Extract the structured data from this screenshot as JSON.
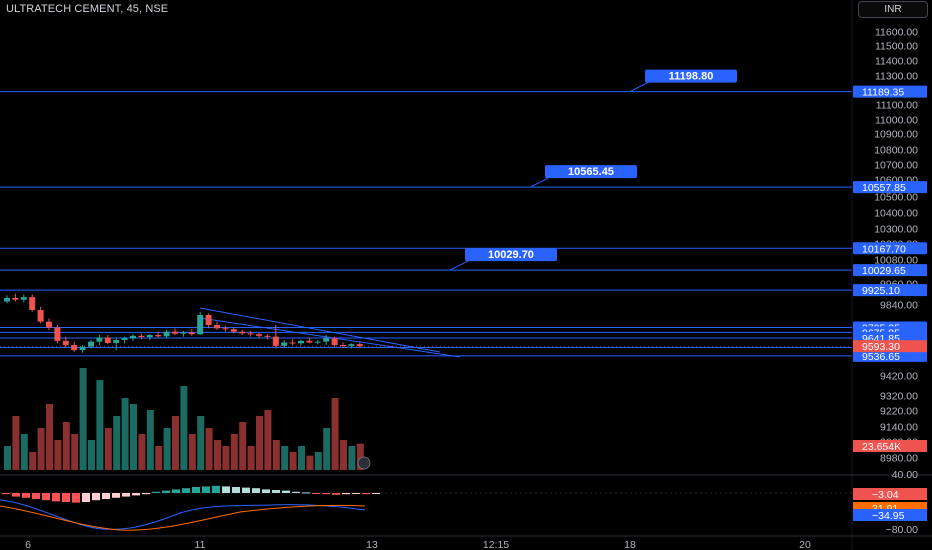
{
  "header": {
    "symbol": "ULTRATECH CEMENT, 45, NSE",
    "currency": "INR"
  },
  "colors": {
    "bg": "#000000",
    "up": "#26a69a",
    "down": "#ef5350",
    "line": "#2962ff",
    "axis_text": "#b2b5be",
    "grid": "#1e222d"
  },
  "chart_data": {
    "type": "candlestick",
    "price_axis": {
      "ticks": [
        11600,
        11500,
        11400,
        11300,
        11200,
        11100,
        11000,
        10900,
        10800,
        10700,
        10600,
        10500,
        10400,
        10300,
        10200,
        10080,
        9960,
        9840,
        9720,
        9600,
        9420,
        9320,
        9220,
        9140,
        9060,
        8980
      ],
      "tick_labels": [
        "11600.00",
        "11500.00",
        "11400.00",
        "11300.00",
        "11200.00",
        "11100.00",
        "11000.00",
        "10900.00",
        "10800.00",
        "10700.00",
        "10600.00",
        "10500.00",
        "10400.00",
        "10300.00",
        "10200.00",
        "10080.00",
        "9960.00",
        "9840.00",
        "9720.00",
        "9600.00",
        "9420.00",
        "9320.00",
        "9220.00",
        "9140.00",
        "9060.00",
        "8980.00"
      ]
    },
    "x_axis": {
      "labels": [
        "6",
        "11",
        "13",
        "12:15",
        "18",
        "20"
      ]
    },
    "horizontal_levels": [
      {
        "price": 11189.35,
        "label": "11189.35",
        "callout": "11198.80"
      },
      {
        "price": 10557.85,
        "label": "10557.85",
        "callout": "10565.45"
      },
      {
        "price": 10167.7,
        "label": "10167.70"
      },
      {
        "price": 10029.65,
        "label": "10029.65",
        "callout": "10029.70"
      },
      {
        "price": 9925.1,
        "label": "9925.10"
      },
      {
        "price": 9705.35,
        "label": "9705.35"
      },
      {
        "price": 9675.95,
        "label": "9675.95"
      },
      {
        "price": 9641.85,
        "label": "9641.85"
      },
      {
        "price": 9585.35,
        "label": "9585.35"
      },
      {
        "price": 9536.65,
        "label": "9536.65"
      }
    ],
    "current_price": {
      "value": 9593.3,
      "label": "9593.30"
    },
    "volume_label": "23.654K",
    "candles": [
      [
        9860,
        9895,
        9850,
        9880
      ],
      [
        9880,
        9905,
        9860,
        9870
      ],
      [
        9870,
        9900,
        9855,
        9885
      ],
      [
        9885,
        9900,
        9800,
        9810
      ],
      [
        9810,
        9830,
        9730,
        9740
      ],
      [
        9740,
        9760,
        9690,
        9705
      ],
      [
        9705,
        9720,
        9610,
        9625
      ],
      [
        9625,
        9650,
        9585,
        9600
      ],
      [
        9600,
        9620,
        9560,
        9570
      ],
      [
        9570,
        9600,
        9555,
        9590
      ],
      [
        9590,
        9630,
        9580,
        9620
      ],
      [
        9620,
        9660,
        9600,
        9645
      ],
      [
        9645,
        9660,
        9605,
        9612
      ],
      [
        9612,
        9640,
        9570,
        9630
      ],
      [
        9630,
        9650,
        9610,
        9640
      ],
      [
        9640,
        9665,
        9625,
        9655
      ],
      [
        9655,
        9670,
        9635,
        9648
      ],
      [
        9648,
        9665,
        9630,
        9660
      ],
      [
        9660,
        9680,
        9645,
        9652
      ],
      [
        9652,
        9690,
        9640,
        9680
      ],
      [
        9680,
        9700,
        9660,
        9668
      ],
      [
        9668,
        9685,
        9650,
        9675
      ],
      [
        9675,
        9695,
        9655,
        9665
      ],
      [
        9665,
        9800,
        9660,
        9780
      ],
      [
        9780,
        9790,
        9700,
        9720
      ],
      [
        9720,
        9740,
        9690,
        9700
      ],
      [
        9700,
        9715,
        9680,
        9695
      ],
      [
        9695,
        9705,
        9670,
        9680
      ],
      [
        9680,
        9690,
        9660,
        9670
      ],
      [
        9670,
        9685,
        9650,
        9665
      ],
      [
        9665,
        9675,
        9640,
        9655
      ],
      [
        9655,
        9665,
        9635,
        9650
      ],
      [
        9650,
        9720,
        9580,
        9595
      ],
      [
        9595,
        9630,
        9585,
        9615
      ],
      [
        9615,
        9635,
        9600,
        9610
      ],
      [
        9610,
        9630,
        9598,
        9625
      ],
      [
        9625,
        9645,
        9610,
        9615
      ],
      [
        9615,
        9630,
        9605,
        9620
      ],
      [
        9620,
        9660,
        9600,
        9640
      ],
      [
        9640,
        9650,
        9590,
        9600
      ],
      [
        9600,
        9615,
        9585,
        9595
      ],
      [
        9595,
        9610,
        9580,
        9605
      ],
      [
        9605,
        9615,
        9585,
        9593
      ]
    ],
    "volumes": [
      0.2,
      0.45,
      0.3,
      0.15,
      0.35,
      0.55,
      0.25,
      0.4,
      0.3,
      0.85,
      0.25,
      0.75,
      0.35,
      0.45,
      0.6,
      0.55,
      0.3,
      0.5,
      0.2,
      0.35,
      0.45,
      0.7,
      0.3,
      0.45,
      0.35,
      0.25,
      0.2,
      0.3,
      0.4,
      0.2,
      0.45,
      0.5,
      0.25,
      0.2,
      0.15,
      0.2,
      0.12,
      0.15,
      0.35,
      0.6,
      0.25,
      0.2,
      0.22
    ],
    "oscillator": {
      "zero_line_label": "40.00",
      "bottom_label": "−80.00",
      "values_labels": [
        "−3.04",
        "31.91",
        "−34.95"
      ],
      "histogram": [
        -0.1,
        -0.3,
        -0.4,
        -0.5,
        -0.6,
        -0.7,
        -0.75,
        -0.8,
        -0.75,
        -0.6,
        -0.5,
        -0.4,
        -0.3,
        -0.2,
        -0.1,
        0.1,
        0.2,
        0.3,
        0.4,
        0.5,
        0.55,
        0.6,
        0.55,
        0.5,
        0.45,
        0.4,
        0.3,
        0.25,
        0.2,
        0.1,
        0.05,
        -0.05,
        -0.1,
        -0.15,
        -0.1,
        -0.05,
        -0.1,
        -0.08
      ]
    }
  }
}
